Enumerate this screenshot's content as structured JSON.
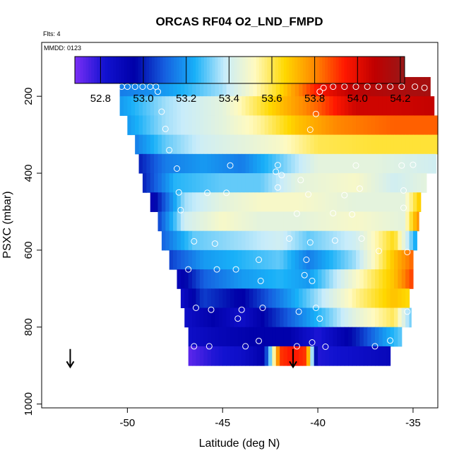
{
  "chart_data": {
    "type": "heatmap",
    "title": "ORCAS RF04 O2_LND_FMPD",
    "annotations": [
      "Flts: 4",
      "MMDD: 0123"
    ],
    "xlabel": "Latitude (deg N)",
    "ylabel": "PSXC (mbar)",
    "xlim": [
      -54.5,
      -33.7
    ],
    "ylim": [
      1010,
      60
    ],
    "x_ticks": [
      -50,
      -45,
      -40,
      -35
    ],
    "x_tick_labels": [
      "-50",
      "-45",
      "-40",
      "-35"
    ],
    "y_ticks": [
      200,
      400,
      600,
      800,
      1000
    ],
    "y_tick_labels": [
      "200",
      "400",
      "600",
      "800",
      "1000"
    ],
    "y_reversed": true,
    "colorbar": {
      "range": [
        52.68,
        54.22
      ],
      "ticks": [
        52.8,
        53.0,
        53.2,
        53.4,
        53.6,
        53.8,
        54.0,
        54.2
      ],
      "tick_labels": [
        "52.8",
        "53.0",
        "53.2",
        "53.4",
        "53.6",
        "53.8",
        "54.0",
        "54.2"
      ],
      "colors": [
        "#7b2ff7",
        "#1212d0",
        "#0000a8",
        "#1560e0",
        "#18b0f8",
        "#c8ecfa",
        "#fffac0",
        "#ffd800",
        "#ff8800",
        "#ff1800",
        "#c00000",
        "#981818"
      ]
    },
    "rows": [
      {
        "p": 175,
        "lat_min": -50.4,
        "lat_max": -34.1,
        "lat_nodes": [
          -50.4,
          -48,
          -45,
          -42,
          -40,
          -38,
          -36,
          -34.1
        ],
        "val_nodes": [
          53.15,
          53.2,
          53.35,
          53.65,
          53.95,
          54.1,
          54.15,
          54.17
        ]
      },
      {
        "p": 225,
        "lat_min": -50.4,
        "lat_max": -33.9,
        "lat_nodes": [
          -50.4,
          -48,
          -45,
          -42,
          -40,
          -38,
          -36,
          -33.9
        ],
        "val_nodes": [
          53.2,
          53.35,
          53.45,
          53.7,
          53.85,
          54.05,
          54.05,
          54.07
        ]
      },
      {
        "p": 275,
        "lat_min": -50.0,
        "lat_max": -33.7,
        "lat_nodes": [
          -50,
          -48,
          -45,
          -43,
          -41,
          -39,
          -36,
          -33.7
        ],
        "val_nodes": [
          53.2,
          53.35,
          53.45,
          53.55,
          53.7,
          53.8,
          53.85,
          53.85
        ]
      },
      {
        "p": 325,
        "lat_min": -49.6,
        "lat_max": -33.7,
        "lat_nodes": [
          -49.6,
          -48,
          -46,
          -44,
          -42,
          -40,
          -37,
          -33.7
        ],
        "val_nodes": [
          53.15,
          53.3,
          53.4,
          53.45,
          53.5,
          53.6,
          53.62,
          53.62
        ]
      },
      {
        "p": 375,
        "lat_min": -49.4,
        "lat_max": -33.8,
        "lat_nodes": [
          -49.4,
          -48,
          -46,
          -44,
          -42,
          -40,
          -37,
          -33.8
        ],
        "val_nodes": [
          53.0,
          53.15,
          53.2,
          53.15,
          53.3,
          53.45,
          53.45,
          53.4
        ]
      },
      {
        "p": 425,
        "lat_min": -49.2,
        "lat_max": -34.3,
        "lat_nodes": [
          -49.2,
          -47.5,
          -45,
          -43,
          -41,
          -38,
          -36,
          -34.3
        ],
        "val_nodes": [
          53.0,
          53.25,
          53.3,
          53.3,
          53.45,
          53.5,
          53.4,
          53.45
        ]
      },
      {
        "p": 475,
        "lat_min": -48.8,
        "lat_max": -34.6,
        "lat_nodes": [
          -48.8,
          -47,
          -45,
          -43,
          -41,
          -38,
          -35.5,
          -34.6
        ],
        "val_nodes": [
          52.9,
          53.35,
          53.45,
          53.5,
          53.5,
          53.45,
          53.45,
          53.7
        ]
      },
      {
        "p": 525,
        "lat_min": -48.4,
        "lat_max": -34.7,
        "lat_nodes": [
          -48.4,
          -47,
          -45,
          -43,
          -41,
          -38,
          -35.5,
          -34.7
        ],
        "val_nodes": [
          53.05,
          53.4,
          53.5,
          53.45,
          53.45,
          53.5,
          53.45,
          53.8
        ]
      },
      {
        "p": 575,
        "lat_min": -48.2,
        "lat_max": -34.8,
        "lat_nodes": [
          -48.2,
          -46.5,
          -44,
          -42,
          -40.5,
          -38,
          -36,
          -34.8
        ],
        "val_nodes": [
          53.1,
          53.3,
          53.35,
          53.4,
          53.3,
          53.4,
          53.65,
          53.2
        ]
      },
      {
        "p": 625,
        "lat_min": -47.8,
        "lat_max": -35.0,
        "lat_nodes": [
          -47.8,
          -46,
          -44,
          -42,
          -40.5,
          -38,
          -36,
          -35
        ],
        "val_nodes": [
          53.05,
          53.2,
          53.25,
          53.3,
          53.15,
          53.35,
          53.7,
          53.85
        ]
      },
      {
        "p": 675,
        "lat_min": -47.4,
        "lat_max": -35.0,
        "lat_nodes": [
          -47.4,
          -46,
          -44,
          -42,
          -40.5,
          -38,
          -36,
          -35
        ],
        "val_nodes": [
          52.9,
          53.1,
          53.2,
          53.25,
          53.2,
          53.5,
          53.7,
          53.9
        ]
      },
      {
        "p": 725,
        "lat_min": -47.2,
        "lat_max": -35.2,
        "lat_nodes": [
          -47.2,
          -46,
          -44,
          -42,
          -40,
          -38,
          -36,
          -35.2
        ],
        "val_nodes": [
          52.85,
          53.05,
          52.95,
          53.15,
          53.35,
          53.55,
          53.7,
          53.65
        ]
      },
      {
        "p": 775,
        "lat_min": -47.0,
        "lat_max": -35.1,
        "lat_nodes": [
          -47,
          -45.5,
          -44,
          -42,
          -40,
          -38,
          -36,
          -35.1
        ],
        "val_nodes": [
          52.85,
          52.95,
          52.85,
          53.05,
          53.25,
          53.45,
          53.6,
          53.3
        ]
      },
      {
        "p": 825,
        "lat_min": -46.8,
        "lat_max": -35.6,
        "lat_nodes": [
          -46.8,
          -45.5,
          -43.5,
          -41.5,
          -40,
          -38,
          -36.5,
          -35.6
        ],
        "val_nodes": [
          52.85,
          52.9,
          52.95,
          52.95,
          52.8,
          53.0,
          53.2,
          53.3
        ]
      },
      {
        "p": 875,
        "lat_min": -46.8,
        "lat_max": -36.2,
        "lat_nodes": [
          -46.8,
          -45.5,
          -44,
          -42.8,
          -42,
          -41.3,
          -40.6,
          -40,
          -38,
          -36.2
        ],
        "val_nodes": [
          52.72,
          52.8,
          52.85,
          52.95,
          53.9,
          53.95,
          53.9,
          52.8,
          52.85,
          52.9
        ]
      }
    ],
    "points": [
      [
        -50.3,
        175
      ],
      [
        -50.0,
        175
      ],
      [
        -49.6,
        175
      ],
      [
        -49.2,
        175
      ],
      [
        -48.8,
        175
      ],
      [
        -48.5,
        175
      ],
      [
        -48.4,
        188
      ],
      [
        -39.9,
        188
      ],
      [
        -39.7,
        178
      ],
      [
        -39.2,
        175
      ],
      [
        -38.6,
        175
      ],
      [
        -38.0,
        175
      ],
      [
        -37.4,
        175
      ],
      [
        -36.8,
        175
      ],
      [
        -36.2,
        175
      ],
      [
        -35.6,
        175
      ],
      [
        -34.9,
        175
      ],
      [
        -34.4,
        178
      ],
      [
        -48.2,
        240
      ],
      [
        -40.1,
        246
      ],
      [
        -48.0,
        285
      ],
      [
        -40.4,
        287
      ],
      [
        -47.8,
        340
      ],
      [
        -44.6,
        380
      ],
      [
        -47.4,
        388
      ],
      [
        -42.1,
        379
      ],
      [
        -38.0,
        380
      ],
      [
        -35.6,
        380
      ],
      [
        -35.0,
        378
      ],
      [
        -42.2,
        396
      ],
      [
        -41.9,
        405
      ],
      [
        -40.9,
        418
      ],
      [
        -42.1,
        437
      ],
      [
        -47.3,
        450
      ],
      [
        -45.8,
        451
      ],
      [
        -44.8,
        451
      ],
      [
        -40.5,
        455
      ],
      [
        -38.6,
        457
      ],
      [
        -37.8,
        440
      ],
      [
        -35.5,
        445
      ],
      [
        -47.2,
        496
      ],
      [
        -41.1,
        505
      ],
      [
        -39.2,
        504
      ],
      [
        -38.2,
        507
      ],
      [
        -35.5,
        490
      ],
      [
        -46.5,
        577
      ],
      [
        -45.4,
        583
      ],
      [
        -41.5,
        570
      ],
      [
        -40.4,
        580
      ],
      [
        -39.1,
        575
      ],
      [
        -37.7,
        570
      ],
      [
        -35.3,
        605
      ],
      [
        -36.8,
        602
      ],
      [
        -46.8,
        650
      ],
      [
        -45.3,
        650
      ],
      [
        -44.3,
        650
      ],
      [
        -43.1,
        625
      ],
      [
        -40.6,
        625
      ],
      [
        -40.7,
        665
      ],
      [
        -40.3,
        680
      ],
      [
        -43.0,
        680
      ],
      [
        -46.4,
        750
      ],
      [
        -45.6,
        755
      ],
      [
        -44.0,
        755
      ],
      [
        -42.9,
        750
      ],
      [
        -40.1,
        750
      ],
      [
        -41.0,
        760
      ],
      [
        -39.9,
        778
      ],
      [
        -44.2,
        778
      ],
      [
        -35.3,
        760
      ],
      [
        -46.5,
        850
      ],
      [
        -45.7,
        850
      ],
      [
        -43.8,
        850
      ],
      [
        -43.1,
        836
      ],
      [
        -40.3,
        840
      ],
      [
        -39.6,
        851
      ],
      [
        -41.1,
        850
      ],
      [
        -37.0,
        850
      ],
      [
        -36.2,
        835
      ]
    ],
    "arrows": [
      {
        "lat": -53.0,
        "p_top": 857,
        "p_tip": 904
      },
      {
        "lat": -41.3,
        "p_top": 857,
        "p_tip": 904
      }
    ]
  }
}
